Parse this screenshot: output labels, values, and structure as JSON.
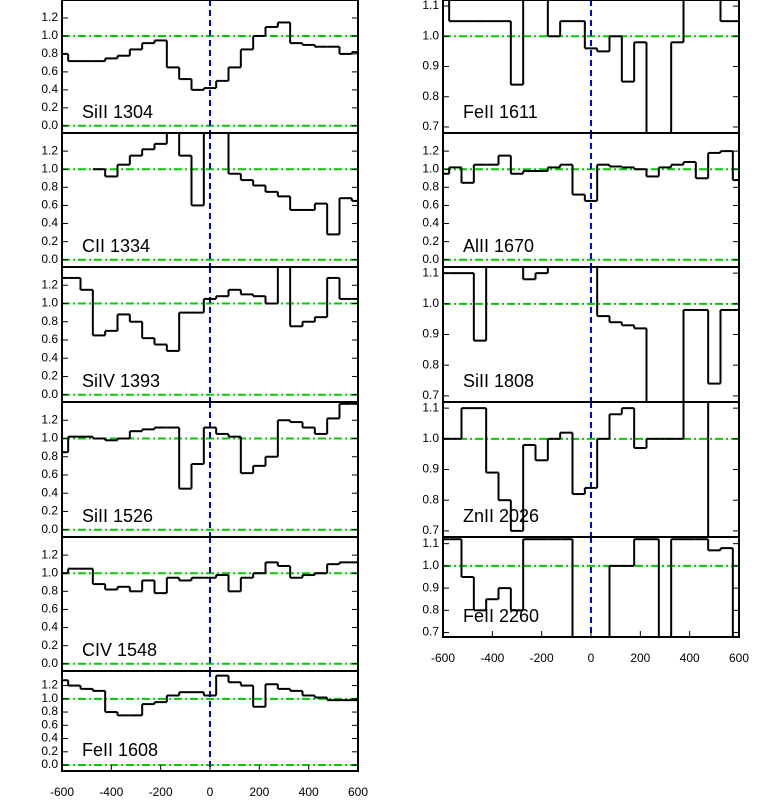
{
  "chart_data": [
    {
      "type": "step",
      "label": "SiII 1304",
      "x": [
        -600,
        -550,
        -500,
        -450,
        -400,
        -350,
        -300,
        -250,
        -200,
        -150,
        -100,
        -50,
        0,
        50,
        100,
        150,
        200,
        250,
        300,
        350,
        400,
        450,
        500,
        550,
        600
      ],
      "values": [
        0.8,
        0.72,
        0.72,
        0.72,
        0.75,
        0.78,
        0.85,
        0.92,
        0.95,
        0.65,
        0.52,
        0.4,
        0.42,
        0.5,
        0.65,
        0.85,
        1.0,
        1.1,
        1.15,
        0.92,
        0.9,
        0.88,
        0.88,
        0.8,
        0.82
      ],
      "xlim": [
        -600,
        600
      ],
      "ylim": [
        -0.08,
        1.4
      ],
      "yticks": [
        {
          "value": 0,
          "label": "0.0"
        },
        0.2,
        0.4,
        0.6,
        0.8,
        {
          "value": 1,
          "label": "1.0"
        },
        1.2
      ],
      "hlines": [
        0,
        1
      ],
      "vline": 0,
      "color": "#000000",
      "ref_color": "#00cc00",
      "vline_color": "#0000dd"
    },
    {
      "type": "step",
      "label": "CII 1334",
      "x": [
        -600,
        -550,
        -500,
        -450,
        -400,
        -350,
        -300,
        -250,
        -200,
        -150,
        -100,
        -50,
        0,
        50,
        100,
        150,
        200,
        250,
        300,
        350,
        400,
        450,
        500,
        550,
        600
      ],
      "values": [
        null,
        null,
        null,
        1.0,
        0.92,
        1.05,
        1.15,
        1.22,
        1.28,
        1.4,
        1.15,
        0.6,
        1.4,
        1.4,
        0.95,
        0.88,
        0.82,
        0.75,
        0.7,
        0.55,
        0.55,
        0.62,
        0.28,
        0.68,
        0.65
      ],
      "xlim": [
        -600,
        600
      ],
      "ylim": [
        -0.08,
        1.4
      ],
      "yticks": [
        {
          "value": 0,
          "label": "0.0"
        },
        0.2,
        0.4,
        0.6,
        0.8,
        {
          "value": 1,
          "label": "1.0"
        },
        1.2
      ],
      "hlines": [
        0,
        1
      ],
      "vline": 0,
      "color": "#000000",
      "ref_color": "#00cc00",
      "vline_color": "#0000dd"
    },
    {
      "type": "step",
      "label": "SiIV 1393",
      "x": [
        -600,
        -550,
        -500,
        -450,
        -400,
        -350,
        -300,
        -250,
        -200,
        -150,
        -100,
        -50,
        0,
        50,
        100,
        150,
        200,
        250,
        300,
        350,
        400,
        450,
        500,
        550,
        600
      ],
      "values": [
        1.28,
        1.28,
        1.15,
        0.65,
        0.7,
        0.88,
        0.8,
        0.62,
        0.55,
        0.48,
        0.9,
        0.9,
        1.05,
        1.08,
        1.15,
        1.1,
        1.08,
        1.0,
        1.4,
        0.75,
        0.8,
        0.85,
        1.28,
        1.05,
        1.05
      ],
      "xlim": [
        -600,
        600
      ],
      "ylim": [
        -0.08,
        1.4
      ],
      "yticks": [
        {
          "value": 0,
          "label": "0.0"
        },
        0.2,
        0.4,
        0.6,
        0.8,
        {
          "value": 1,
          "label": "1.0"
        },
        1.2
      ],
      "hlines": [
        0,
        1
      ],
      "vline": 0,
      "color": "#000000",
      "ref_color": "#00cc00",
      "vline_color": "#0000dd"
    },
    {
      "type": "step",
      "label": "SiII 1526",
      "x": [
        -600,
        -550,
        -500,
        -450,
        -400,
        -350,
        -300,
        -250,
        -200,
        -150,
        -100,
        -50,
        0,
        50,
        100,
        150,
        200,
        250,
        300,
        350,
        400,
        450,
        500,
        550,
        600
      ],
      "values": [
        0.85,
        1.02,
        1.02,
        1.0,
        0.98,
        1.0,
        1.08,
        1.1,
        1.12,
        1.12,
        0.45,
        0.72,
        1.12,
        1.05,
        1.02,
        0.62,
        0.7,
        0.8,
        1.2,
        1.18,
        1.12,
        1.05,
        1.22,
        1.38,
        1.38
      ],
      "xlim": [
        -600,
        600
      ],
      "ylim": [
        -0.08,
        1.4
      ],
      "yticks": [
        {
          "value": 0,
          "label": "0.0"
        },
        0.2,
        0.4,
        0.6,
        0.8,
        {
          "value": 1,
          "label": "1.0"
        },
        1.2
      ],
      "hlines": [
        0,
        1
      ],
      "vline": 0,
      "color": "#000000",
      "ref_color": "#00cc00",
      "vline_color": "#0000dd"
    },
    {
      "type": "step",
      "label": "CIV 1548",
      "x": [
        -600,
        -550,
        -500,
        -450,
        -400,
        -350,
        -300,
        -250,
        -200,
        -150,
        -100,
        -50,
        0,
        50,
        100,
        150,
        200,
        250,
        300,
        350,
        400,
        450,
        500,
        550,
        600
      ],
      "values": [
        1.0,
        1.05,
        1.05,
        0.88,
        0.82,
        0.85,
        0.8,
        0.92,
        0.78,
        0.95,
        0.92,
        0.95,
        0.95,
        0.98,
        0.8,
        0.95,
        1.0,
        1.12,
        1.08,
        0.95,
        0.98,
        1.0,
        1.1,
        1.12,
        1.12
      ],
      "xlim": [
        -600,
        600
      ],
      "ylim": [
        -0.08,
        1.4
      ],
      "yticks": [
        {
          "value": 0,
          "label": "0.0"
        },
        0.2,
        0.4,
        0.6,
        0.8,
        {
          "value": 1,
          "label": "1.0"
        },
        1.2
      ],
      "hlines": [
        0,
        1
      ],
      "vline": 0,
      "color": "#000000",
      "ref_color": "#00cc00",
      "vline_color": "#0000dd"
    },
    {
      "type": "step",
      "label": "FeII 1608",
      "x": [
        -600,
        -550,
        -500,
        -450,
        -400,
        -350,
        -300,
        -250,
        -200,
        -150,
        -100,
        -50,
        0,
        50,
        100,
        150,
        200,
        250,
        300,
        350,
        400,
        450,
        500,
        550,
        600
      ],
      "values": [
        1.28,
        1.2,
        1.15,
        1.12,
        0.8,
        0.75,
        0.75,
        0.92,
        0.95,
        1.05,
        1.1,
        1.1,
        1.05,
        1.35,
        1.25,
        1.2,
        0.88,
        1.22,
        1.15,
        1.12,
        1.05,
        1.02,
        0.98,
        0.98,
        0.98
      ],
      "xlim": [
        -600,
        600
      ],
      "ylim": [
        -0.09,
        1.42
      ],
      "yticks": [
        {
          "value": 0,
          "label": "0.0"
        },
        0.2,
        0.4,
        0.6,
        0.8,
        {
          "value": 1,
          "label": "1.0"
        },
        1.2
      ],
      "xticks": [
        -600,
        -400,
        -200,
        0,
        200,
        400,
        600
      ],
      "hlines": [
        0,
        1
      ],
      "vline": 0,
      "color": "#000000",
      "ref_color": "#00cc00",
      "vline_color": "#0000dd"
    },
    {
      "type": "step",
      "label": "FeII 1611",
      "x": [
        -600,
        -550,
        -500,
        -450,
        -400,
        -350,
        -300,
        -250,
        -200,
        -150,
        -100,
        -50,
        0,
        50,
        100,
        150,
        200,
        250,
        300,
        350,
        400,
        450,
        500,
        550,
        600
      ],
      "values": [
        1.12,
        1.05,
        1.05,
        1.05,
        1.05,
        1.05,
        0.84,
        1.12,
        1.12,
        1.0,
        1.05,
        1.05,
        0.96,
        0.95,
        1.0,
        0.85,
        0.98,
        0.68,
        0.68,
        0.98,
        1.12,
        1.12,
        1.12,
        1.05,
        1.05
      ],
      "xlim": [
        -600,
        600
      ],
      "ylim": [
        0.68,
        1.12
      ],
      "yticks": [
        0.7,
        0.8,
        0.9,
        {
          "value": 1,
          "label": "1.0"
        },
        1.1
      ],
      "hlines": [
        1
      ],
      "vline": 0,
      "color": "#000000",
      "ref_color": "#00cc00",
      "vline_color": "#0000dd"
    },
    {
      "type": "step",
      "label": "AlII 1670",
      "x": [
        -600,
        -550,
        -500,
        -450,
        -400,
        -350,
        -300,
        -250,
        -200,
        -150,
        -100,
        -50,
        0,
        50,
        100,
        150,
        200,
        250,
        300,
        350,
        400,
        450,
        500,
        550,
        600
      ],
      "values": [
        0.95,
        1.02,
        0.85,
        1.05,
        1.05,
        1.15,
        0.95,
        0.98,
        0.98,
        1.02,
        1.05,
        0.72,
        0.65,
        1.05,
        1.03,
        1.02,
        1.0,
        0.92,
        1.02,
        1.05,
        1.08,
        0.9,
        1.18,
        1.2,
        0.88
      ],
      "xlim": [
        -600,
        600
      ],
      "ylim": [
        -0.08,
        1.4
      ],
      "yticks": [
        {
          "value": 0,
          "label": "0.0"
        },
        0.2,
        0.4,
        0.6,
        0.8,
        {
          "value": 1,
          "label": "1.0"
        },
        1.2
      ],
      "hlines": [
        0,
        1
      ],
      "vline": 0,
      "color": "#000000",
      "ref_color": "#00cc00",
      "vline_color": "#0000dd"
    },
    {
      "type": "step",
      "label": "SiII 1808",
      "x": [
        -600,
        -550,
        -500,
        -450,
        -400,
        -350,
        -300,
        -250,
        -200,
        -150,
        -100,
        -50,
        0,
        50,
        100,
        150,
        200,
        250,
        300,
        350,
        400,
        450,
        500,
        550,
        600
      ],
      "values": [
        1.1,
        1.1,
        1.1,
        0.88,
        1.12,
        1.12,
        1.12,
        1.08,
        1.1,
        1.12,
        1.12,
        1.12,
        1.12,
        0.96,
        0.94,
        0.93,
        0.92,
        0.68,
        0.68,
        0.68,
        0.98,
        0.98,
        0.74,
        0.98,
        0.98
      ],
      "xlim": [
        -600,
        600
      ],
      "ylim": [
        0.68,
        1.12
      ],
      "yticks": [
        0.7,
        0.8,
        0.9,
        {
          "value": 1,
          "label": "1.0"
        },
        1.1
      ],
      "hlines": [
        1
      ],
      "vline": 0,
      "color": "#000000",
      "ref_color": "#00cc00",
      "vline_color": "#0000dd"
    },
    {
      "type": "step",
      "label": "ZnII 2026",
      "x": [
        -600,
        -550,
        -500,
        -450,
        -400,
        -350,
        -300,
        -250,
        -200,
        -150,
        -100,
        -50,
        0,
        50,
        100,
        150,
        200,
        250,
        300,
        350,
        400,
        450,
        500,
        550,
        600
      ],
      "values": [
        1.0,
        1.0,
        1.1,
        1.1,
        0.89,
        0.8,
        0.7,
        0.98,
        0.93,
        1.0,
        1.02,
        0.82,
        0.84,
        1.0,
        1.08,
        1.1,
        0.97,
        1.0,
        1.0,
        1.0,
        1.12,
        1.12,
        0.68,
        0.68,
        0.68
      ],
      "xlim": [
        -600,
        600
      ],
      "ylim": [
        0.68,
        1.12
      ],
      "yticks": [
        0.7,
        0.8,
        0.9,
        {
          "value": 1,
          "label": "1.0"
        },
        1.1
      ],
      "hlines": [
        1
      ],
      "vline": 0,
      "color": "#000000",
      "ref_color": "#00cc00",
      "vline_color": "#0000dd"
    },
    {
      "type": "step",
      "label": "FeII 2260",
      "x": [
        -600,
        -550,
        -500,
        -450,
        -400,
        -350,
        -300,
        -250,
        -200,
        -150,
        -100,
        -50,
        0,
        50,
        100,
        150,
        200,
        250,
        300,
        350,
        400,
        450,
        500,
        550,
        600
      ],
      "values": [
        1.12,
        1.12,
        0.95,
        0.8,
        0.85,
        0.9,
        0.8,
        1.12,
        1.12,
        1.12,
        1.12,
        0.68,
        0.68,
        0.68,
        1.0,
        1.0,
        1.12,
        1.12,
        0.68,
        1.12,
        1.12,
        1.12,
        1.07,
        1.08,
        0.68
      ],
      "xlim": [
        -600,
        600
      ],
      "ylim": [
        0.68,
        1.13
      ],
      "yticks": [
        0.7,
        0.8,
        0.9,
        {
          "value": 1,
          "label": "1.0"
        },
        1.1
      ],
      "xticks": [
        -600,
        -400,
        -200,
        0,
        200,
        400,
        600
      ],
      "hlines": [
        1
      ],
      "vline": 0,
      "color": "#000000",
      "ref_color": "#00cc00",
      "vline_color": "#0000dd"
    }
  ]
}
